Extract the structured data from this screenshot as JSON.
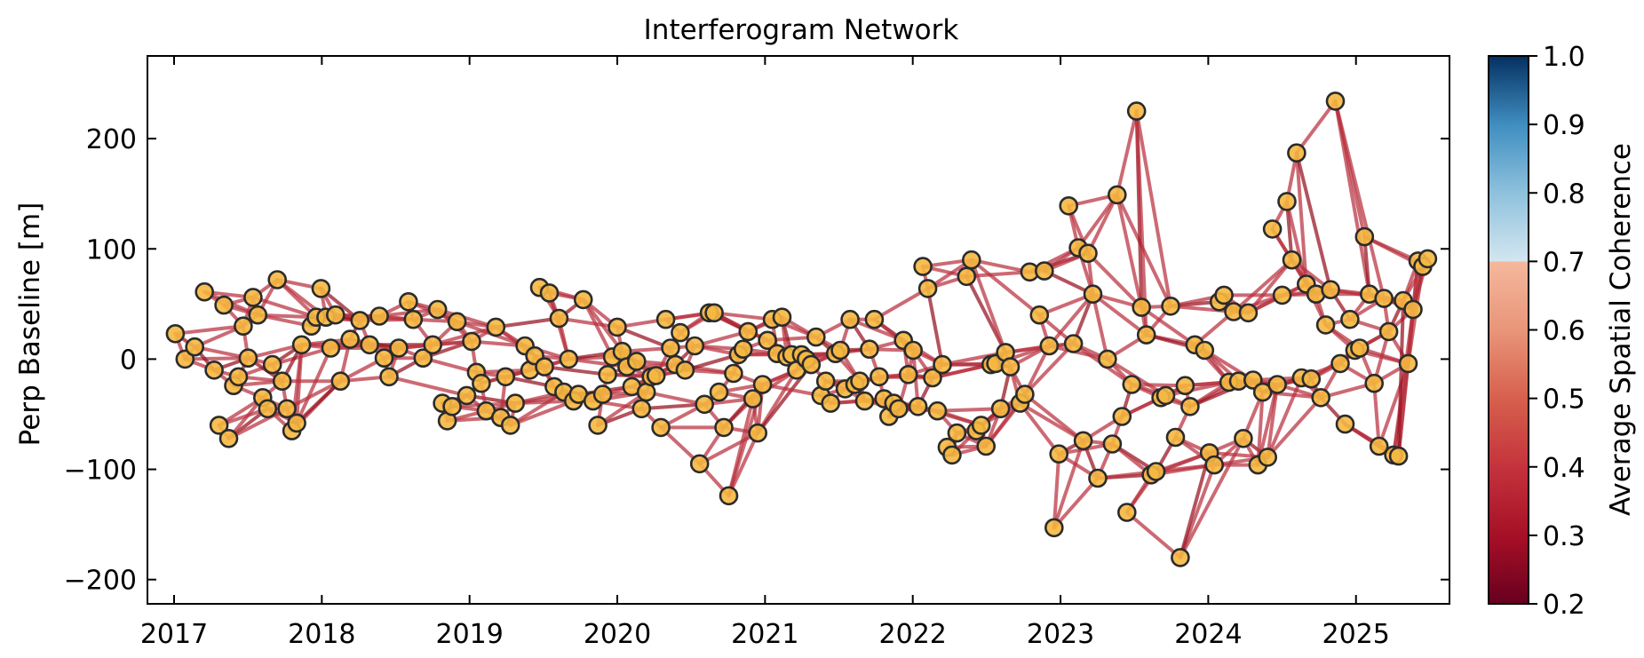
{
  "chart_data": {
    "type": "scatter",
    "title": "Interferogram Network",
    "xlabel": "",
    "ylabel": "Perp Baseline [m]",
    "x_ticks": [
      "2017",
      "2018",
      "2019",
      "2020",
      "2021",
      "2022",
      "2023",
      "2024",
      "2025"
    ],
    "y_ticks": [
      -200,
      -100,
      0,
      100,
      200
    ],
    "xlim": [
      "2016-10-27",
      "2025-08-20"
    ],
    "ylim": [
      -222,
      275
    ],
    "grid": false,
    "legend": "none",
    "colorbar": {
      "label": "Average Spatial Coherence",
      "range": [
        0.2,
        1.0
      ],
      "ticks": [
        "0.2",
        "0.3",
        "0.4",
        "0.5",
        "0.6",
        "0.7",
        "0.8",
        "0.9",
        "1.0"
      ],
      "note": "values above 0.7 shown as the blue part of the scale"
    },
    "colors": {
      "node_fill": "#f5b841",
      "node_edge": "#2b2b2b",
      "edge_line": "#b8303f",
      "edge_line_strong": "#96101f"
    },
    "acquisitions": [
      [
        "2017-01-04",
        23
      ],
      [
        "2017-01-28",
        0
      ],
      [
        "2017-02-21",
        11
      ],
      [
        "2017-03-17",
        61
      ],
      [
        "2017-04-10",
        -10
      ],
      [
        "2017-04-22",
        -60
      ],
      [
        "2017-05-04",
        49
      ],
      [
        "2017-05-16",
        -72
      ],
      [
        "2017-05-28",
        -24
      ],
      [
        "2017-06-09",
        -16
      ],
      [
        "2017-06-21",
        30
      ],
      [
        "2017-07-03",
        1
      ],
      [
        "2017-07-15",
        56
      ],
      [
        "2017-07-27",
        40
      ],
      [
        "2017-08-08",
        -35
      ],
      [
        "2017-08-20",
        -45
      ],
      [
        "2017-09-01",
        -5
      ],
      [
        "2017-09-13",
        72
      ],
      [
        "2017-09-25",
        -20
      ],
      [
        "2017-10-07",
        -45
      ],
      [
        "2017-10-19",
        -65
      ],
      [
        "2017-10-31",
        -58
      ],
      [
        "2017-11-12",
        13
      ],
      [
        "2017-12-06",
        30
      ],
      [
        "2017-12-18",
        38
      ],
      [
        "2017-12-30",
        64
      ],
      [
        "2018-01-11",
        38
      ],
      [
        "2018-01-23",
        10
      ],
      [
        "2018-02-04",
        40
      ],
      [
        "2018-02-16",
        -20
      ],
      [
        "2018-03-12",
        18
      ],
      [
        "2018-04-05",
        35
      ],
      [
        "2018-04-29",
        13
      ],
      [
        "2018-05-23",
        39
      ],
      [
        "2018-06-04",
        1
      ],
      [
        "2018-06-16",
        -16
      ],
      [
        "2018-07-10",
        10
      ],
      [
        "2018-08-03",
        52
      ],
      [
        "2018-08-15",
        36
      ],
      [
        "2018-09-08",
        1
      ],
      [
        "2018-10-02",
        13
      ],
      [
        "2018-10-14",
        45
      ],
      [
        "2018-10-26",
        -40
      ],
      [
        "2018-11-07",
        -56
      ],
      [
        "2018-11-19",
        -43
      ],
      [
        "2018-12-01",
        34
      ],
      [
        "2018-12-25",
        -33
      ],
      [
        "2019-01-06",
        16
      ],
      [
        "2019-01-18",
        -12
      ],
      [
        "2019-01-30",
        -22
      ],
      [
        "2019-02-11",
        -47
      ],
      [
        "2019-03-07",
        29
      ],
      [
        "2019-03-19",
        -53
      ],
      [
        "2019-03-31",
        -16
      ],
      [
        "2019-04-12",
        -60
      ],
      [
        "2019-04-24",
        -40
      ],
      [
        "2019-05-18",
        12
      ],
      [
        "2019-05-30",
        -10
      ],
      [
        "2019-06-11",
        3
      ],
      [
        "2019-06-23",
        65
      ],
      [
        "2019-07-05",
        -7
      ],
      [
        "2019-07-17",
        60
      ],
      [
        "2019-07-29",
        -25
      ],
      [
        "2019-08-10",
        37
      ],
      [
        "2019-08-22",
        -30
      ],
      [
        "2019-09-03",
        0
      ],
      [
        "2019-09-15",
        -38
      ],
      [
        "2019-09-27",
        -32
      ],
      [
        "2019-10-09",
        54
      ],
      [
        "2019-11-02",
        -38
      ],
      [
        "2019-11-14",
        -60
      ],
      [
        "2019-11-26",
        -32
      ],
      [
        "2019-12-08",
        -14
      ],
      [
        "2019-12-20",
        2
      ],
      [
        "2020-01-01",
        29
      ],
      [
        "2020-01-13",
        7
      ],
      [
        "2020-01-25",
        -7
      ],
      [
        "2020-02-06",
        -25
      ],
      [
        "2020-02-18",
        -2
      ],
      [
        "2020-03-01",
        -45
      ],
      [
        "2020-03-13",
        -30
      ],
      [
        "2020-03-25",
        -16
      ],
      [
        "2020-04-06",
        -15
      ],
      [
        "2020-04-18",
        -62
      ],
      [
        "2020-04-30",
        36
      ],
      [
        "2020-05-12",
        10
      ],
      [
        "2020-05-24",
        -5
      ],
      [
        "2020-06-05",
        24
      ],
      [
        "2020-06-17",
        -10
      ],
      [
        "2020-07-11",
        12
      ],
      [
        "2020-07-23",
        -95
      ],
      [
        "2020-08-04",
        -41
      ],
      [
        "2020-08-16",
        42
      ],
      [
        "2020-08-28",
        42
      ],
      [
        "2020-09-09",
        -30
      ],
      [
        "2020-09-21",
        -62
      ],
      [
        "2020-10-03",
        -124
      ],
      [
        "2020-10-15",
        -13
      ],
      [
        "2020-10-27",
        4
      ],
      [
        "2020-11-08",
        9
      ],
      [
        "2020-11-20",
        25
      ],
      [
        "2020-12-02",
        -36
      ],
      [
        "2020-12-14",
        -67
      ],
      [
        "2020-12-26",
        -23
      ],
      [
        "2021-01-07",
        17
      ],
      [
        "2021-01-19",
        36
      ],
      [
        "2021-01-31",
        5
      ],
      [
        "2021-02-12",
        38
      ],
      [
        "2021-02-24",
        2
      ],
      [
        "2021-03-08",
        4
      ],
      [
        "2021-03-20",
        -10
      ],
      [
        "2021-04-01",
        4
      ],
      [
        "2021-04-13",
        0
      ],
      [
        "2021-04-25",
        -5
      ],
      [
        "2021-05-07",
        20
      ],
      [
        "2021-05-19",
        -33
      ],
      [
        "2021-05-31",
        -20
      ],
      [
        "2021-06-12",
        -40
      ],
      [
        "2021-06-24",
        5
      ],
      [
        "2021-07-06",
        8
      ],
      [
        "2021-07-18",
        -27
      ],
      [
        "2021-07-30",
        36
      ],
      [
        "2021-08-11",
        -23
      ],
      [
        "2021-08-23",
        -20
      ],
      [
        "2021-09-04",
        -38
      ],
      [
        "2021-09-16",
        9
      ],
      [
        "2021-09-28",
        36
      ],
      [
        "2021-10-10",
        -16
      ],
      [
        "2021-10-22",
        -36
      ],
      [
        "2021-11-03",
        -52
      ],
      [
        "2021-11-15",
        -40
      ],
      [
        "2021-11-27",
        -45
      ],
      [
        "2021-12-09",
        17
      ],
      [
        "2021-12-21",
        -14
      ],
      [
        "2022-01-02",
        8
      ],
      [
        "2022-01-14",
        -43
      ],
      [
        "2022-01-26",
        84
      ],
      [
        "2022-02-07",
        64
      ],
      [
        "2022-02-19",
        -17
      ],
      [
        "2022-03-03",
        -47
      ],
      [
        "2022-03-15",
        -5
      ],
      [
        "2022-03-27",
        -80
      ],
      [
        "2022-04-08",
        -87
      ],
      [
        "2022-04-20",
        -67
      ],
      [
        "2022-05-14",
        75
      ],
      [
        "2022-05-26",
        90
      ],
      [
        "2022-06-07",
        -65
      ],
      [
        "2022-06-19",
        -60
      ],
      [
        "2022-07-01",
        -79
      ],
      [
        "2022-07-13",
        -5
      ],
      [
        "2022-07-25",
        -4
      ],
      [
        "2022-08-06",
        -45
      ],
      [
        "2022-08-18",
        6
      ],
      [
        "2022-08-30",
        -7
      ],
      [
        "2022-09-23",
        -40
      ],
      [
        "2022-10-05",
        -32
      ],
      [
        "2022-10-17",
        79
      ],
      [
        "2022-11-10",
        40
      ],
      [
        "2022-11-22",
        80
      ],
      [
        "2022-12-04",
        12
      ],
      [
        "2022-12-16",
        -153
      ],
      [
        "2022-12-28",
        -86
      ],
      [
        "2023-01-21",
        139
      ],
      [
        "2023-02-02",
        14
      ],
      [
        "2023-02-14",
        101
      ],
      [
        "2023-02-26",
        -74
      ],
      [
        "2023-03-10",
        96
      ],
      [
        "2023-03-22",
        59
      ],
      [
        "2023-04-03",
        -108
      ],
      [
        "2023-04-27",
        0
      ],
      [
        "2023-05-09",
        -77
      ],
      [
        "2023-05-21",
        149
      ],
      [
        "2023-06-02",
        -52
      ],
      [
        "2023-06-14",
        -139
      ],
      [
        "2023-06-26",
        -23
      ],
      [
        "2023-07-08",
        225
      ],
      [
        "2023-07-20",
        47
      ],
      [
        "2023-08-01",
        22
      ],
      [
        "2023-08-13",
        -105
      ],
      [
        "2023-08-25",
        -102
      ],
      [
        "2023-09-06",
        -35
      ],
      [
        "2023-09-18",
        -33
      ],
      [
        "2023-09-30",
        48
      ],
      [
        "2023-10-12",
        -71
      ],
      [
        "2023-10-24",
        -180
      ],
      [
        "2023-11-05",
        -24
      ],
      [
        "2023-11-17",
        -43
      ],
      [
        "2023-11-29",
        13
      ],
      [
        "2023-12-23",
        8
      ],
      [
        "2024-01-04",
        -85
      ],
      [
        "2024-01-16",
        -96
      ],
      [
        "2024-01-28",
        52
      ],
      [
        "2024-02-09",
        58
      ],
      [
        "2024-02-21",
        -21
      ],
      [
        "2024-03-04",
        43
      ],
      [
        "2024-03-16",
        -20
      ],
      [
        "2024-03-28",
        -72
      ],
      [
        "2024-04-09",
        42
      ],
      [
        "2024-04-21",
        -19
      ],
      [
        "2024-05-03",
        -96
      ],
      [
        "2024-05-15",
        -30
      ],
      [
        "2024-05-27",
        -89
      ],
      [
        "2024-06-08",
        118
      ],
      [
        "2024-06-20",
        -23
      ],
      [
        "2024-07-02",
        58
      ],
      [
        "2024-07-14",
        143
      ],
      [
        "2024-07-26",
        90
      ],
      [
        "2024-08-07",
        187
      ],
      [
        "2024-08-19",
        -17
      ],
      [
        "2024-08-31",
        68
      ],
      [
        "2024-09-12",
        -18
      ],
      [
        "2024-09-24",
        59
      ],
      [
        "2024-10-06",
        -35
      ],
      [
        "2024-10-18",
        31
      ],
      [
        "2024-10-30",
        63
      ],
      [
        "2024-11-11",
        234
      ],
      [
        "2024-11-23",
        -4
      ],
      [
        "2024-12-05",
        -59
      ],
      [
        "2024-12-17",
        36
      ],
      [
        "2024-12-29",
        8
      ],
      [
        "2025-01-10",
        10
      ],
      [
        "2025-01-22",
        111
      ],
      [
        "2025-02-03",
        59
      ],
      [
        "2025-02-15",
        -22
      ],
      [
        "2025-02-27",
        -79
      ],
      [
        "2025-03-11",
        55
      ],
      [
        "2025-03-23",
        25
      ],
      [
        "2025-04-04",
        -87
      ],
      [
        "2025-04-16",
        -88
      ],
      [
        "2025-04-28",
        53
      ],
      [
        "2025-05-10",
        -4
      ],
      [
        "2025-05-22",
        45
      ],
      [
        "2025-06-03",
        89
      ],
      [
        "2025-06-15",
        84
      ],
      [
        "2025-06-27",
        91
      ]
    ]
  }
}
